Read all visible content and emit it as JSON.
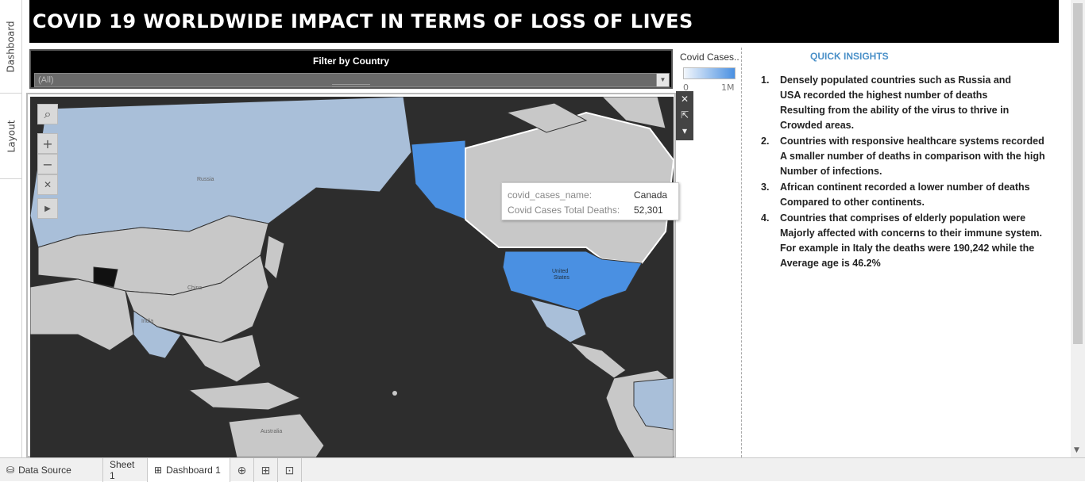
{
  "side_tabs": [
    "Dashboard",
    "Layout"
  ],
  "title": "COVID 19 WORLDWIDE IMPACT IN TERMS OF LOSS OF LIVES",
  "filter": {
    "title": "Filter by Country",
    "value": "(All)"
  },
  "legend": {
    "title": "Covid Cases..",
    "min": "0",
    "max": "1M",
    "colors": [
      "#f3f7fc",
      "#4a90e2"
    ]
  },
  "map": {
    "labels": {
      "russia": "Russia",
      "china": "China",
      "india": "India",
      "usa_1": "United",
      "usa_2": "States",
      "australia": "Australia"
    },
    "tooltip": {
      "key1": "covid_cases_name:",
      "val1": "Canada",
      "key2": "Covid Cases Total Deaths:",
      "val2": "52,301"
    },
    "colors": {
      "ocean": "#2d2d2d",
      "land": "#c8c8c8",
      "low": "#a9bfd9",
      "high": "#4a90e2"
    }
  },
  "insights": {
    "title": "QUICK INSIGHTS",
    "items": [
      {
        "num": "1.",
        "lines": [
          "Densely populated countries such as Russia and",
          "USA recorded the highest number of deaths",
          "Resulting from the ability of the virus to thrive in",
          "Crowded areas."
        ]
      },
      {
        "num": "2.",
        "lines": [
          "Countries with responsive healthcare systems recorded",
          "A smaller number of deaths in comparison with the high",
          "Number of infections."
        ]
      },
      {
        "num": "3.",
        "lines": [
          "African continent recorded a lower number of deaths",
          "Compared to other continents."
        ]
      },
      {
        "num": "4.",
        "lines": [
          "Countries that comprises of elderly population were",
          "Majorly affected with concerns to their immune system.",
          "For example in Italy the deaths were 190,242 while the",
          "Average age is 46.2%"
        ]
      }
    ]
  },
  "bottom_tabs": {
    "data_source": "Data Source",
    "sheet1": "Sheet 1",
    "dashboard1": "Dashboard 1"
  },
  "icons": [
    "search-icon",
    "zoom-in-icon",
    "zoom-out-icon",
    "reset-icon",
    "play-icon",
    "close-icon",
    "popout-icon",
    "dropdown-icon",
    "new-sheet-icon",
    "new-dashboard-icon",
    "new-story-icon"
  ]
}
